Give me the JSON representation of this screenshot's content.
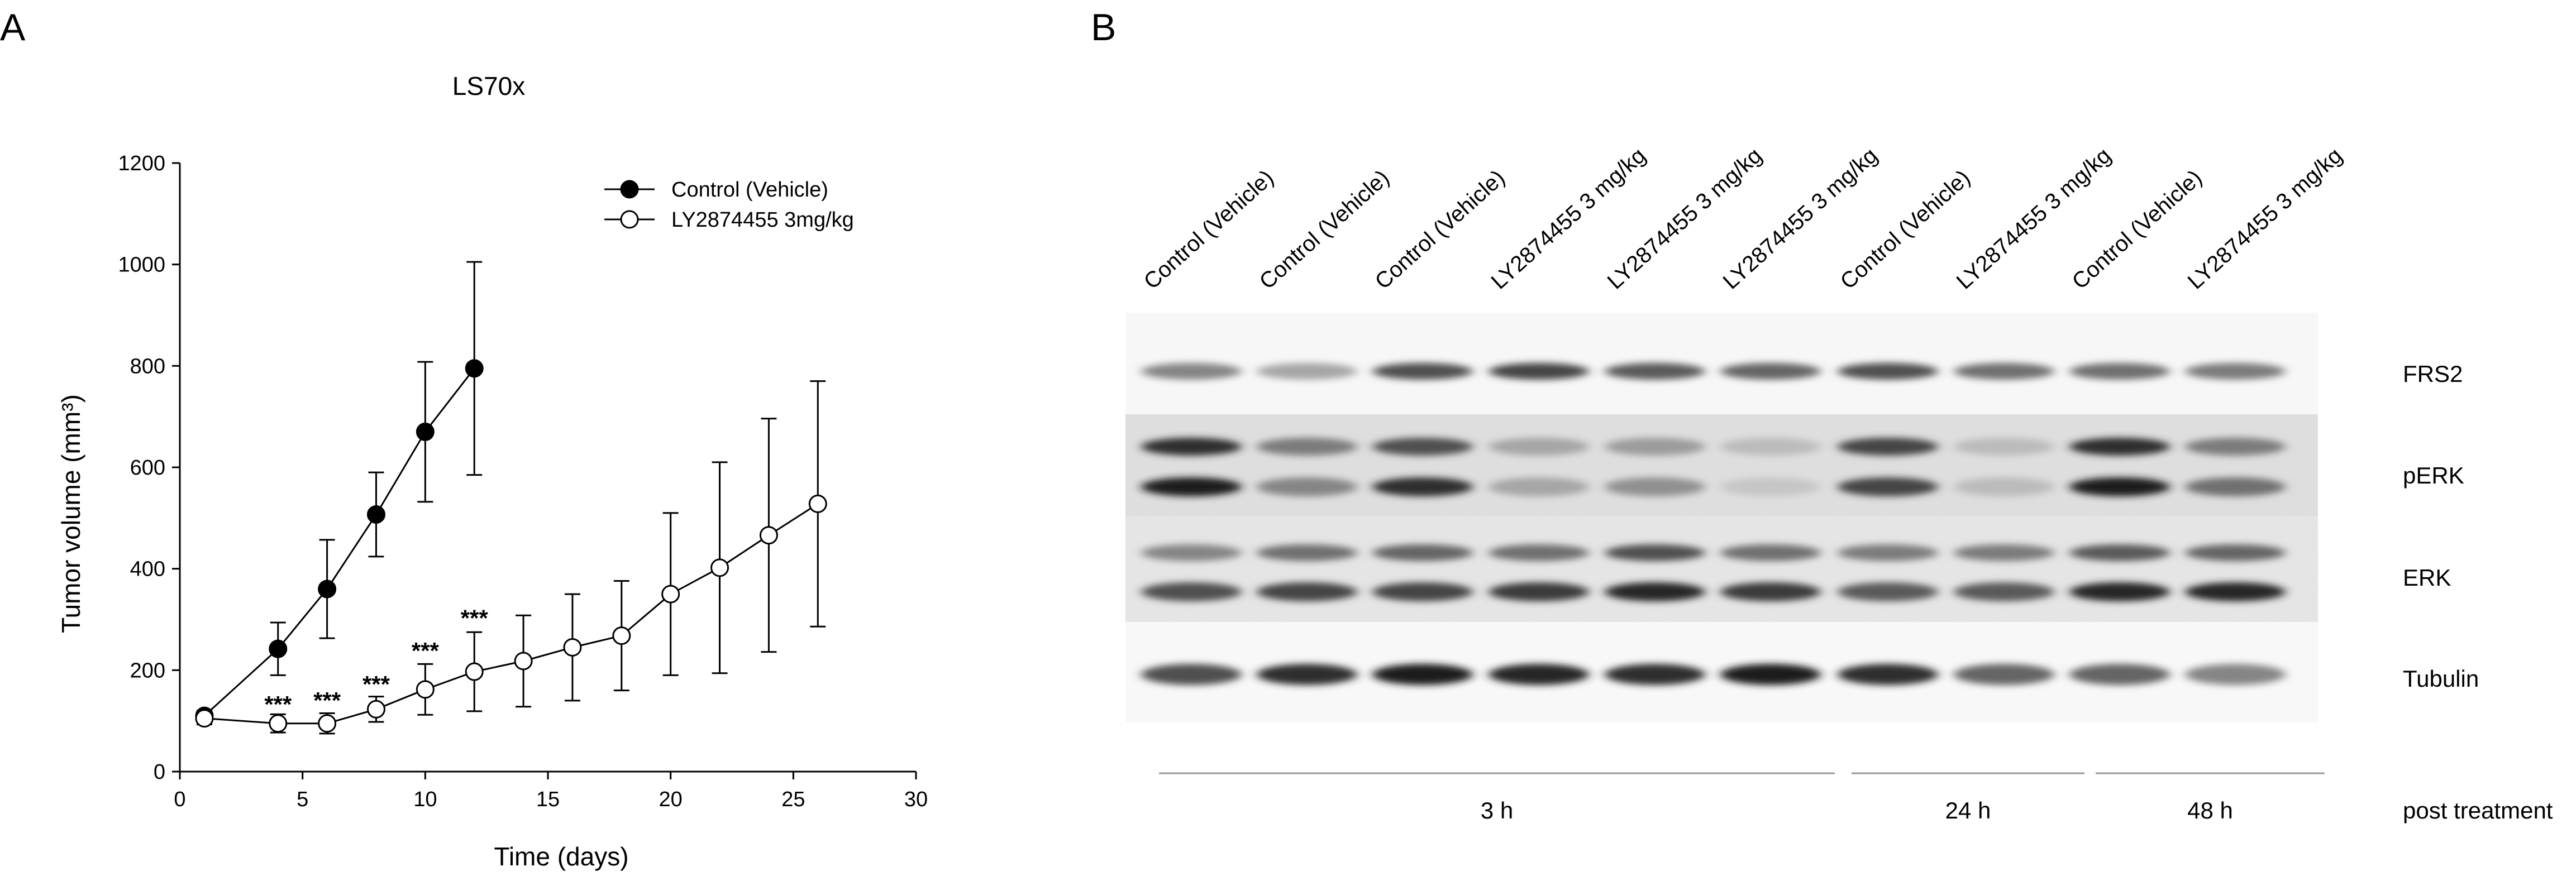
{
  "panels": {
    "a_letter": "A",
    "b_letter": "B"
  },
  "chart_data": [
    {
      "type": "line",
      "title": "LS70x",
      "xlabel": "Time (days)",
      "ylabel": "Tumor volume (mm³)",
      "xlim": [
        0,
        30
      ],
      "ylim": [
        0,
        1200
      ],
      "xticks": [
        0,
        5,
        10,
        15,
        20,
        25,
        30
      ],
      "yticks": [
        0,
        200,
        400,
        600,
        800,
        1000,
        1200
      ],
      "grid": false,
      "legend": "top-right",
      "series": [
        {
          "name": "Control (Vehicle)",
          "marker": "filled-circle",
          "color": "#000000",
          "x": [
            1,
            4,
            6,
            8,
            10,
            12
          ],
          "y": [
            110,
            242,
            360,
            507,
            670,
            795
          ],
          "error": [
            10,
            52,
            97,
            83,
            138,
            210
          ]
        },
        {
          "name": "LY2874455 3mg/kg",
          "marker": "open-circle",
          "color": "#000000",
          "x": [
            1,
            4,
            6,
            8,
            10,
            12,
            14,
            16,
            18,
            20,
            22,
            24,
            26
          ],
          "y": [
            105,
            95,
            95,
            123,
            162,
            197,
            218,
            245,
            268,
            350,
            402,
            466,
            528
          ],
          "error": [
            12,
            18,
            20,
            25,
            50,
            78,
            90,
            105,
            108,
            160,
            208,
            230,
            242
          ]
        }
      ],
      "annotations": [
        {
          "x": 4,
          "text": "***",
          "y": 132
        },
        {
          "x": 6,
          "text": "***",
          "y": 140
        },
        {
          "x": 8,
          "text": "***",
          "y": 172
        },
        {
          "x": 10,
          "text": "***",
          "y": 238
        },
        {
          "x": 12,
          "text": "***",
          "y": 302
        }
      ]
    }
  ],
  "blot": {
    "lanes": [
      "Control (Vehicle)",
      "Control (Vehicle)",
      "Control (Vehicle)",
      "LY2874455 3 mg/kg",
      "LY2874455 3 mg/kg",
      "LY2874455 3 mg/kg",
      "Control (Vehicle)",
      "LY2874455 3 mg/kg",
      "Control (Vehicle)",
      "LY2874455 3 mg/kg"
    ],
    "rows": [
      "FRS2",
      "pERK",
      "ERK",
      "Tubulin"
    ],
    "timepoints": [
      "3 h",
      "24 h",
      "48 h"
    ],
    "timepoint_suffix": "post treatment",
    "band_intensity": {
      "FRS2": [
        0.45,
        0.3,
        0.7,
        0.75,
        0.65,
        0.6,
        0.7,
        0.55,
        0.55,
        0.5
      ],
      "pERK_upper": [
        0.85,
        0.5,
        0.7,
        0.3,
        0.35,
        0.2,
        0.75,
        0.2,
        0.85,
        0.5
      ],
      "pERK_lower": [
        0.95,
        0.45,
        0.85,
        0.3,
        0.4,
        0.15,
        0.75,
        0.2,
        0.95,
        0.55
      ],
      "ERK_upper": [
        0.45,
        0.55,
        0.6,
        0.55,
        0.7,
        0.55,
        0.5,
        0.5,
        0.65,
        0.6
      ],
      "ERK_lower": [
        0.7,
        0.75,
        0.75,
        0.8,
        0.9,
        0.8,
        0.65,
        0.65,
        0.9,
        0.9
      ],
      "Tubulin": [
        0.7,
        0.85,
        0.95,
        0.9,
        0.85,
        0.95,
        0.85,
        0.6,
        0.6,
        0.45
      ]
    }
  }
}
